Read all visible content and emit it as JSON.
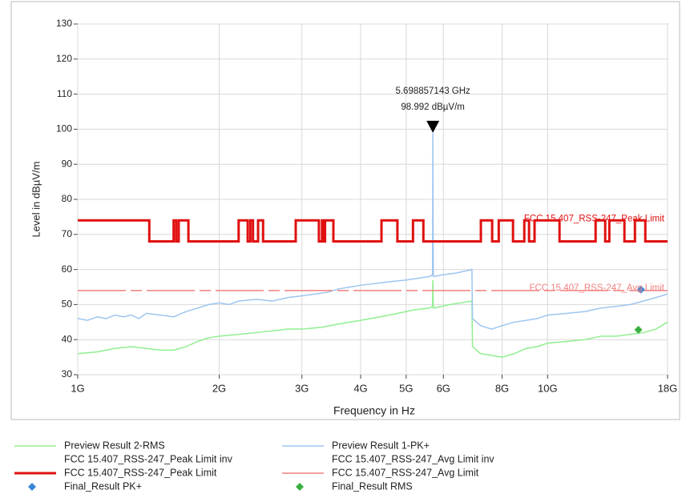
{
  "chart_data": {
    "type": "line",
    "xlabel": "Frequency in Hz",
    "ylabel": "Level in dBµV/m",
    "xscale": "log",
    "grid": true,
    "xlim": [
      1000000000.0,
      18000000000.0
    ],
    "ylim": [
      30,
      130
    ],
    "xticks": [
      {
        "value": 1000000000.0,
        "label": "1G"
      },
      {
        "value": 2000000000.0,
        "label": "2G"
      },
      {
        "value": 3000000000.0,
        "label": "3G"
      },
      {
        "value": 4000000000.0,
        "label": "4G"
      },
      {
        "value": 5000000000.0,
        "label": "5G"
      },
      {
        "value": 6000000000.0,
        "label": "6G"
      },
      {
        "value": 8000000000.0,
        "label": "8G"
      },
      {
        "value": 10000000000.0,
        "label": "10G"
      },
      {
        "value": 18000000000.0,
        "label": "18G"
      }
    ],
    "yticks": [
      30,
      40,
      50,
      60,
      70,
      80,
      90,
      100,
      110,
      120,
      130
    ],
    "series": [
      {
        "name": "Preview Result 2-RMS",
        "color": "#90ee90",
        "line_width": 1.5,
        "x": [
          1000000000.0,
          1100000000.0,
          1200000000.0,
          1300000000.0,
          1400000000.0,
          1500000000.0,
          1600000000.0,
          1700000000.0,
          1800000000.0,
          1900000000.0,
          2000000000.0,
          2200000000.0,
          2400000000.0,
          2600000000.0,
          2800000000.0,
          3000000000.0,
          3300000000.0,
          3600000000.0,
          4000000000.0,
          4400000000.0,
          4800000000.0,
          5200000000.0,
          5600000000.0,
          5690000000.0,
          5698857143,
          5710000000.0,
          6200000000.0,
          6900000000.0,
          6920000000.0,
          7200000000.0,
          7600000000.0,
          8000000000.0,
          8500000000.0,
          9000000000.0,
          9500000000.0,
          10000000000.0,
          11000000000.0,
          12000000000.0,
          13000000000.0,
          14000000000.0,
          15000000000.0,
          16000000000.0,
          17000000000.0,
          18000000000.0
        ],
        "values": [
          36,
          36.5,
          37.5,
          38,
          37.5,
          37,
          37,
          38,
          39.5,
          40.5,
          41,
          41.5,
          42,
          42.5,
          43,
          43,
          43.5,
          44.5,
          45.5,
          46.5,
          47.5,
          48.5,
          49,
          49.5,
          57,
          49,
          50,
          51,
          38,
          36,
          35.5,
          35,
          36,
          37.5,
          38,
          39,
          39.5,
          40,
          41,
          41,
          41.5,
          42,
          43,
          45
        ]
      },
      {
        "name": "Preview Result 1-PK+",
        "color": "#9ec5f0",
        "line_width": 1.5,
        "x": [
          1000000000.0,
          1050000000.0,
          1100000000.0,
          1150000000.0,
          1200000000.0,
          1250000000.0,
          1300000000.0,
          1350000000.0,
          1400000000.0,
          1500000000.0,
          1600000000.0,
          1700000000.0,
          1800000000.0,
          1900000000.0,
          2000000000.0,
          2100000000.0,
          2200000000.0,
          2400000000.0,
          2600000000.0,
          2800000000.0,
          3000000000.0,
          3200000000.0,
          3400000000.0,
          3600000000.0,
          3800000000.0,
          4000000000.0,
          4300000000.0,
          4600000000.0,
          5000000000.0,
          5300000000.0,
          5600000000.0,
          5690000000.0,
          5698857143,
          5710000000.0,
          6000000000.0,
          6400000000.0,
          6900000000.0,
          6920000000.0,
          7200000000.0,
          7600000000.0,
          8000000000.0,
          8500000000.0,
          9000000000.0,
          9500000000.0,
          10000000000.0,
          11000000000.0,
          12000000000.0,
          13000000000.0,
          14000000000.0,
          15000000000.0,
          16000000000.0,
          17000000000.0,
          18000000000.0
        ],
        "values": [
          46,
          45.5,
          46.5,
          46,
          47,
          46.5,
          47,
          46,
          47.5,
          47,
          46.5,
          48,
          49,
          50,
          50.5,
          50,
          51,
          51.5,
          51,
          52,
          52.5,
          53,
          53.5,
          54.5,
          55,
          55.5,
          56,
          56.5,
          57,
          57.5,
          58,
          58.5,
          98.992,
          58,
          58.5,
          59,
          60,
          46,
          44,
          43,
          44,
          45,
          45.5,
          46,
          47,
          47.5,
          48,
          49,
          49.5,
          50,
          51,
          52,
          53
        ]
      },
      {
        "name": "FCC 15.407_RSS-247_Peak Limit inv"
      },
      {
        "name": "FCC 15.407_RSS-247_Avg Limit inv"
      },
      {
        "name": "FCC 15.407_RSS-247_Peak Limit",
        "color": "#e01010",
        "line_width": 3,
        "x": [
          1000000000.0,
          1420000000.0,
          1420000000.0,
          1600000000.0,
          1600000000.0,
          1620000000.0,
          1620000000.0,
          1640000000.0,
          1640000000.0,
          1720000000.0,
          1720000000.0,
          2200000000.0,
          2200000000.0,
          2300000000.0,
          2300000000.0,
          2330000000.0,
          2330000000.0,
          2360000000.0,
          2360000000.0,
          2420000000.0,
          2420000000.0,
          2480000000.0,
          2480000000.0,
          2910000000.0,
          2910000000.0,
          3260000000.0,
          3260000000.0,
          3310000000.0,
          3310000000.0,
          3340000000.0,
          3340000000.0,
          3360000000.0,
          3360000000.0,
          3500000000.0,
          3500000000.0,
          4430000000.0,
          4430000000.0,
          4790000000.0,
          4790000000.0,
          5170000000.0,
          5170000000.0,
          5440000000.0,
          5440000000.0,
          7210000000.0,
          7210000000.0,
          7620000000.0,
          7620000000.0,
          7870000000.0,
          7870000000.0,
          8440000000.0,
          8440000000.0,
          8920000000.0,
          8920000000.0,
          9130000000.0,
          9130000000.0,
          9380000000.0,
          9380000000.0,
          10600000000.0,
          10600000000.0,
          12650000000.0,
          12650000000.0,
          13260000000.0,
          13260000000.0,
          13530000000.0,
          13530000000.0,
          14570000000.0,
          14570000000.0,
          15340000000.0,
          15340000000.0,
          16140000000.0,
          16140000000.0,
          18000000000.0
        ],
        "values": [
          74,
          74,
          68,
          68,
          74,
          74,
          68,
          68,
          74,
          74,
          68,
          68,
          74,
          74,
          68,
          68,
          74,
          74,
          68,
          68,
          74,
          74,
          68,
          68,
          74,
          74,
          68,
          68,
          74,
          74,
          68,
          68,
          74,
          74,
          68,
          68,
          74,
          74,
          68,
          68,
          74,
          74,
          68,
          68,
          74,
          74,
          68,
          68,
          74,
          74,
          68,
          68,
          74,
          74,
          68,
          68,
          74,
          74,
          68,
          68,
          74,
          74,
          68,
          68,
          74,
          74,
          68,
          68,
          74,
          74,
          68,
          68
        ]
      },
      {
        "name": "FCC 15.407_RSS-247_Avg Limit",
        "color": "#f08080",
        "line_width": 1.5,
        "dashed": true,
        "x": [
          1000000000.0,
          18000000000.0
        ],
        "values": [
          54,
          54
        ]
      },
      {
        "name": "Final_Result PK+",
        "color": "#3a86d8",
        "marker": "diamond",
        "x": [
          15800000000.0
        ],
        "values": [
          54.3
        ]
      },
      {
        "name": "Final_Result RMS",
        "color": "#3cb043",
        "marker": "diamond",
        "x": [
          15600000000.0
        ],
        "values": [
          42.8
        ]
      }
    ],
    "annotation": {
      "x": 5698857143,
      "y": 98.992,
      "lines": [
        "5.698857143 GHz",
        "98.992 dBµV/m"
      ]
    }
  }
}
